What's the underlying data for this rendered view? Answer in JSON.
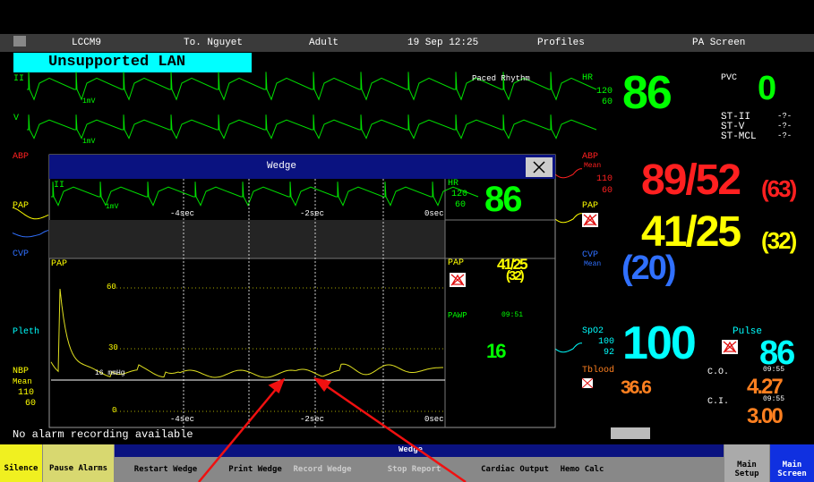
{
  "top_bar": {
    "bed": "LCCM9",
    "patient": "To. Nguyet",
    "category": "Adult",
    "datetime": "19 Sep 12:25",
    "profiles": "Profiles",
    "screen": "PA Screen"
  },
  "alert": "Unsupported LAN",
  "ecg": {
    "lead1": "II",
    "lead2": "V",
    "rhythm": "Paced Rhythm",
    "scale1": "1mV",
    "scale2": "1mV"
  },
  "wave_labels": {
    "abp": "ABP",
    "pap": "PAP",
    "cvp": "CVP",
    "pleth": "Pleth",
    "nbp": "NBP",
    "nbp_mean": "Mean",
    "nbp_high": "110",
    "nbp_low": "60"
  },
  "vitals": {
    "hr": {
      "label": "HR",
      "high": "120",
      "low": "60",
      "value": "86"
    },
    "pvc": {
      "label": "PVC",
      "value": "0"
    },
    "st": [
      {
        "label": "ST-II",
        "value": "-?-"
      },
      {
        "label": "ST-V",
        "value": "-?-"
      },
      {
        "label": "ST-MCL",
        "value": "-?-"
      }
    ],
    "abp": {
      "label": "ABP",
      "mean": "Mean",
      "high": "110",
      "low": "60",
      "value": "89/52",
      "mean_value": "(63)"
    },
    "pap": {
      "label": "PAP",
      "value": "41/25",
      "mean_value": "(32)"
    },
    "cvp": {
      "label": "CVP",
      "mean": "Mean",
      "value": "(20)"
    },
    "spo2": {
      "label": "SpO2",
      "high": "100",
      "low": "92",
      "value": "100"
    },
    "pulse": {
      "label": "Pulse",
      "value": "86"
    },
    "tblood": {
      "label": "Tblood",
      "value": "36.6"
    },
    "co": {
      "label": "C.O.",
      "time": "09:55",
      "value": "4.27"
    },
    "ci": {
      "label": "C.I.",
      "time": "09:55",
      "value": "3.00"
    }
  },
  "status": "No alarm recording available",
  "dialog": {
    "title": "Wedge",
    "ecg": {
      "lead": "II",
      "scale": "1mV",
      "t1": "-4sec",
      "t2": "-2sec",
      "t3": "0sec"
    },
    "hr": {
      "label": "HR",
      "high": "120",
      "low": "60",
      "value": "86"
    },
    "pap": {
      "label": "PAP",
      "y60": "60",
      "y30": "30",
      "y0": "0",
      "wedge_line": "16 mmHg",
      "t1": "-4sec",
      "t2": "-2sec",
      "t3": "0sec"
    },
    "pap_panel": {
      "label": "PAP",
      "value": "41/25",
      "mean_value": "(32)"
    },
    "pawp": {
      "label": "PAWP",
      "time": "09:51",
      "value": "16"
    }
  },
  "bottom": {
    "silence": "Silence",
    "pause": "Pause Alarms",
    "group": "Wedge",
    "buttons": [
      "Restart Wedge",
      "Print Wedge",
      "Record Wedge",
      "Stop Report",
      "Cardiac Output",
      "Hemo Calc"
    ],
    "main_setup": "Main Setup",
    "main_screen": "Main Screen"
  }
}
